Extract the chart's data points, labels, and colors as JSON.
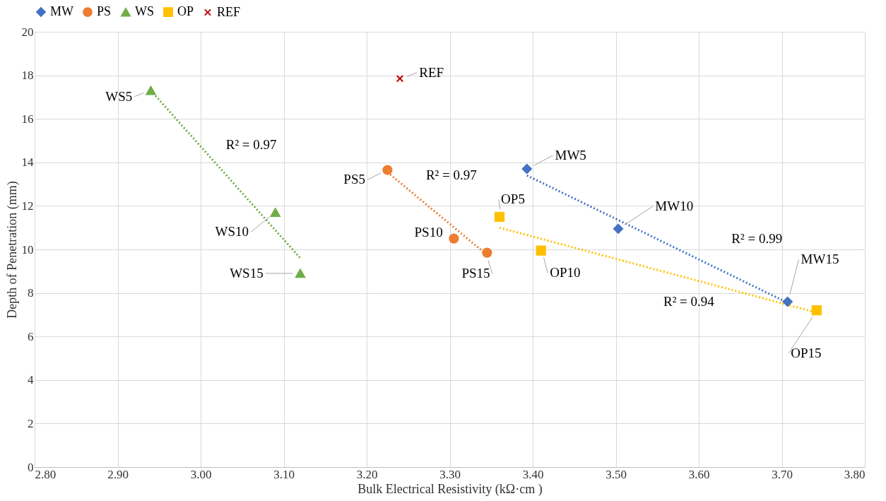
{
  "chart_data": {
    "type": "scatter",
    "xlabel": "Bulk Electrical Resistivity (kΩ·cm )",
    "ylabel": "Depth of Penetration (mm)",
    "xlim": [
      2.8,
      3.8
    ],
    "xticks": [
      {
        "value": 2.8,
        "label": "2.80"
      },
      {
        "value": 2.9,
        "label": "2.90"
      },
      {
        "value": 3.0,
        "label": "3.00"
      },
      {
        "value": 3.1,
        "label": "3.10"
      },
      {
        "value": 3.2,
        "label": "3.20"
      },
      {
        "value": 3.3,
        "label": "3.30"
      },
      {
        "value": 3.4,
        "label": "3.40"
      },
      {
        "value": 3.5,
        "label": "3.50"
      },
      {
        "value": 3.6,
        "label": "3.60"
      },
      {
        "value": 3.7,
        "label": "3.70"
      },
      {
        "value": 3.8,
        "label": "3.80"
      }
    ],
    "ylim": [
      0,
      20
    ],
    "yticks": [
      0,
      2,
      4,
      6,
      8,
      10,
      12,
      14,
      16,
      18,
      20
    ],
    "grid": true,
    "legend": "top",
    "series": [
      {
        "name": "MW",
        "color": "#4472c4",
        "marker": "diamond",
        "x": [
          3.393,
          3.503,
          3.707
        ],
        "values": [
          13.7,
          10.95,
          7.6
        ]
      },
      {
        "name": "PS",
        "color": "#ed7d31",
        "marker": "circle",
        "x": [
          3.225,
          3.305,
          3.345
        ],
        "values": [
          13.65,
          10.5,
          9.85
        ]
      },
      {
        "name": "WS",
        "color": "#70ad47",
        "marker": "triangle",
        "x": [
          2.94,
          3.09,
          3.12
        ],
        "values": [
          17.3,
          11.7,
          8.9
        ]
      },
      {
        "name": "OP",
        "color": "#ffc000",
        "marker": "square",
        "x": [
          3.36,
          3.41,
          3.742
        ],
        "values": [
          11.5,
          9.95,
          7.2
        ]
      },
      {
        "name": "REF",
        "color": "#c00000",
        "marker": "cross",
        "x": [
          3.24
        ],
        "values": [
          17.85
        ]
      },
      {
        "type": "line",
        "color": "#4472c4",
        "line_style": "dotted",
        "x": [
          3.393,
          3.707
        ],
        "values": [
          13.4,
          7.55
        ]
      },
      {
        "type": "line",
        "color": "#ed7d31",
        "line_style": "dotted",
        "x": [
          3.225,
          3.345
        ],
        "values": [
          13.55,
          9.75
        ]
      },
      {
        "type": "line",
        "color": "#70ad47",
        "line_style": "dotted",
        "x": [
          2.94,
          3.12
        ],
        "values": [
          17.3,
          9.6
        ]
      },
      {
        "type": "line",
        "color": "#ffc000",
        "line_style": "dotted",
        "x": [
          3.36,
          3.742
        ],
        "values": [
          11.0,
          7.1
        ]
      }
    ],
    "annotations": [
      {
        "text": "WS5",
        "x": 2.94,
        "y": 17.3
      },
      {
        "text": "WS10",
        "x": 3.09,
        "y": 11.7
      },
      {
        "text": "WS15",
        "x": 3.12,
        "y": 8.9
      },
      {
        "text": "PS5",
        "x": 3.225,
        "y": 13.65
      },
      {
        "text": "PS10",
        "x": 3.305,
        "y": 10.5
      },
      {
        "text": "PS15",
        "x": 3.345,
        "y": 9.85
      },
      {
        "text": "MW5",
        "x": 3.393,
        "y": 13.7
      },
      {
        "text": "MW10",
        "x": 3.503,
        "y": 10.95
      },
      {
        "text": "MW15",
        "x": 3.707,
        "y": 7.6
      },
      {
        "text": "OP5",
        "x": 3.36,
        "y": 11.5
      },
      {
        "text": "OP10",
        "x": 3.41,
        "y": 9.95
      },
      {
        "text": "OP15",
        "x": 3.742,
        "y": 7.2
      },
      {
        "text": "REF",
        "x": 3.24,
        "y": 17.85
      },
      "R² = 0.97",
      "R² = 0.97",
      "R² = 0.99",
      "R² = 0.94"
    ]
  }
}
